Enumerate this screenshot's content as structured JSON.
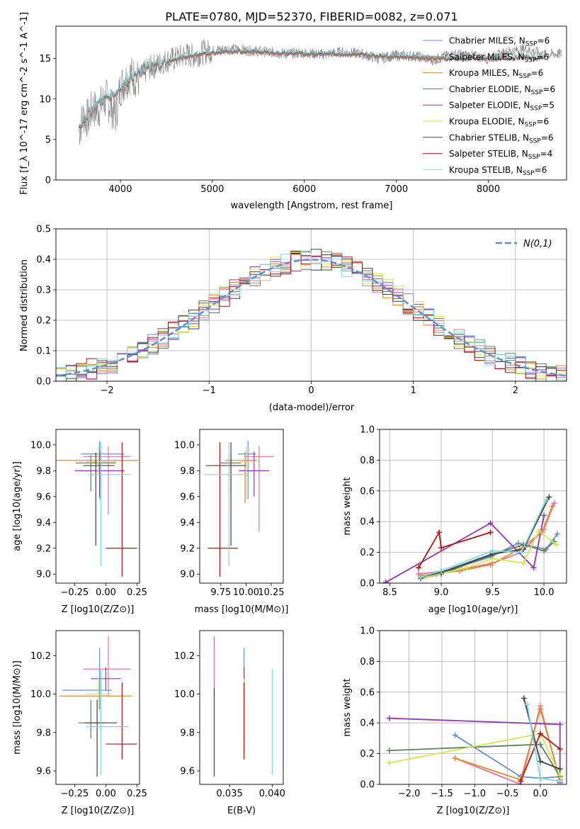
{
  "figure_title": "PLATE=0780, MJD=52370, FIBERID=0082, z=0.071",
  "series": [
    {
      "name": "Chabrier MILES",
      "nssp": "6",
      "color": "#6a8fd5"
    },
    {
      "name": "Salpeter MILES",
      "nssp": "6",
      "color": "#e8729a"
    },
    {
      "name": "Kroupa MILES",
      "nssp": "6",
      "color": "#e68a2e"
    },
    {
      "name": "Chabrier ELODIE",
      "nssp": "6",
      "color": "#5d7f63"
    },
    {
      "name": "Salpeter ELODIE",
      "nssp": "5",
      "color": "#9137b0"
    },
    {
      "name": "Kroupa ELODIE",
      "nssp": "6",
      "color": "#d5e650"
    },
    {
      "name": "Chabrier STELIB",
      "nssp": "6",
      "color": "#404040"
    },
    {
      "name": "Salpeter STELIB",
      "nssp": "4",
      "color": "#b01515"
    },
    {
      "name": "Kroupa STELIB",
      "nssp": "6",
      "color": "#7dd9de"
    }
  ],
  "chart_data": [
    {
      "id": "spectrum",
      "type": "line",
      "xlabel": "wavelength [Angstrom, rest frame]",
      "ylabel": "Flux [f_λ 10^-17 erg cm^-2 s^-1 A^-1]",
      "xlim": [
        3300,
        8850
      ],
      "ylim": [
        0,
        19
      ],
      "xticks": [
        4000,
        5000,
        6000,
        7000,
        8000
      ],
      "yticks": [
        0,
        5,
        10,
        15
      ],
      "grid": false,
      "legend_position": "top-right",
      "data_color": "#808080",
      "data_x": [
        3550,
        3600,
        3650,
        3700,
        3750,
        3800,
        3850,
        3900,
        3950,
        4000,
        4100,
        4200,
        4300,
        4400,
        4500,
        4600,
        4700,
        4800,
        4900,
        5000,
        5200,
        5400,
        5600,
        5800,
        6000,
        6200,
        6400,
        6600,
        6800,
        7000,
        7200,
        7400,
        7600,
        7800,
        8000,
        8200,
        8400,
        8600,
        8800
      ],
      "data_y": [
        6.0,
        8.0,
        7.5,
        9.0,
        8.5,
        9.5,
        10.0,
        9.0,
        8.0,
        11.5,
        13.0,
        12.5,
        13.8,
        14.2,
        14.8,
        15.0,
        15.5,
        15.3,
        15.8,
        16.0,
        16.2,
        16.0,
        15.8,
        15.6,
        15.7,
        15.5,
        15.8,
        15.6,
        15.0,
        15.4,
        15.3,
        14.8,
        15.5,
        15.4,
        15.0,
        15.8,
        16.2,
        15.5,
        15.6
      ],
      "model_x": [
        3550,
        3650,
        3750,
        3850,
        3950,
        4100,
        4300,
        4500,
        4700,
        4900,
        5100,
        5400,
        5700,
        6000,
        6300,
        6600,
        6900,
        7200,
        7500,
        7800,
        8100,
        8400,
        8600
      ],
      "model_y": [
        6.5,
        8.2,
        9.4,
        10.2,
        10.8,
        12.6,
        13.8,
        14.6,
        15.2,
        15.6,
        15.8,
        15.9,
        15.7,
        15.6,
        15.6,
        15.5,
        15.3,
        15.2,
        15.0,
        15.0,
        15.0,
        15.2,
        15.0
      ]
    },
    {
      "id": "residuals",
      "type": "histogram",
      "xlabel": "(data-model)/error",
      "ylabel": "Normed distribution",
      "xlim": [
        -2.5,
        2.5
      ],
      "ylim": [
        0,
        0.5
      ],
      "xticks": [
        -2,
        -1,
        0,
        1,
        2
      ],
      "yticks": [
        0.0,
        0.1,
        0.2,
        0.3,
        0.4,
        0.5
      ],
      "grid": true,
      "legend_position": "top-right",
      "legend_label": "N(0,1)",
      "reference_color": "#5b8fd6",
      "bins": [
        -2.5,
        2.5,
        50
      ]
    },
    {
      "id": "age-vs-Z",
      "type": "errorbar",
      "xlabel": "Z [log10(Z/Z⊙)]",
      "ylabel": "age [log10(age/yr)]",
      "xlim": [
        -0.4,
        0.27
      ],
      "ylim": [
        8.93,
        10.12
      ],
      "xticks": [
        -0.25,
        0.0,
        0.25
      ],
      "yticks": [
        9.0,
        9.2,
        9.4,
        9.6,
        9.8,
        10.0
      ],
      "points": [
        {
          "x": -0.05,
          "y": 9.93,
          "xe": [
            0.15,
            0.2
          ],
          "ye": [
            0.35,
            0.1
          ]
        },
        {
          "x": 0.02,
          "y": 9.91,
          "xe": [
            0.2,
            0.18
          ],
          "ye": [
            0.45,
            0.08
          ]
        },
        {
          "x": -0.04,
          "y": 9.88,
          "xe": [
            0.38,
            0.3
          ],
          "ye": [
            0.32,
            0.07
          ]
        },
        {
          "x": -0.12,
          "y": 9.86,
          "xe": [
            0.12,
            0.2
          ],
          "ye": [
            0.22,
            0.06
          ]
        },
        {
          "x": -0.05,
          "y": 9.8,
          "xe": [
            0.2,
            0.2
          ],
          "ye": [
            0.2,
            0.15
          ]
        },
        {
          "x": -0.06,
          "y": 9.87,
          "xe": [
            0.1,
            0.15
          ],
          "ye": [
            0.1,
            0.12
          ]
        },
        {
          "x": -0.08,
          "y": 9.84,
          "xe": [
            0.1,
            0.15
          ],
          "ye": [
            0.62,
            0.1
          ]
        },
        {
          "x": 0.13,
          "y": 9.2,
          "xe": [
            0.13,
            0.12
          ],
          "ye": [
            0.22,
            0.82
          ]
        },
        {
          "x": -0.04,
          "y": 9.77,
          "xe": [
            0.1,
            0.24
          ],
          "ye": [
            0.71,
            0.25
          ]
        }
      ]
    },
    {
      "id": "age-vs-mass",
      "type": "errorbar",
      "xlabel": "mass [log10(M/M⊙)]",
      "ylabel": "",
      "xlim": [
        9.54,
        10.37
      ],
      "ylim": [
        8.93,
        10.12
      ],
      "xticks": [
        9.75,
        10.0,
        10.25
      ],
      "yticks": [
        9.0,
        9.2,
        9.4,
        9.6,
        9.8,
        10.0
      ],
      "points": [
        {
          "x": 10.02,
          "y": 9.93,
          "xe": [
            0.1,
            0.08
          ],
          "ye": [
            0.35,
            0.1
          ]
        },
        {
          "x": 10.13,
          "y": 9.91,
          "xe": [
            0.15,
            0.15
          ],
          "ye": [
            0.58,
            0.08
          ]
        },
        {
          "x": 9.99,
          "y": 9.88,
          "xe": [
            0.2,
            0.12
          ],
          "ye": [
            0.33,
            0.07
          ]
        },
        {
          "x": 9.85,
          "y": 9.86,
          "xe": [
            0.1,
            0.1
          ],
          "ye": [
            0.22,
            0.06
          ]
        },
        {
          "x": 10.08,
          "y": 9.8,
          "xe": [
            0.15,
            0.15
          ],
          "ye": [
            0.2,
            0.15
          ]
        },
        {
          "x": 10.0,
          "y": 9.87,
          "xe": [
            0.05,
            0.1
          ],
          "ye": [
            0.3,
            0.12
          ]
        },
        {
          "x": 9.85,
          "y": 9.84,
          "xe": [
            0.25,
            0.15
          ],
          "ye": [
            0.62,
            0.18
          ]
        },
        {
          "x": 9.74,
          "y": 9.2,
          "xe": [
            0.12,
            0.18
          ],
          "ye": [
            0.22,
            0.82
          ]
        },
        {
          "x": 9.83,
          "y": 9.77,
          "xe": [
            0.25,
            0.2
          ],
          "ye": [
            0.71,
            0.25
          ]
        }
      ]
    },
    {
      "id": "weight-vs-age",
      "type": "line",
      "xlabel": "age [log10(age/yr)]",
      "ylabel": "mass weight",
      "xlim": [
        8.4,
        10.22
      ],
      "ylim": [
        0,
        1
      ],
      "xticks": [
        8.5,
        9.0,
        9.5,
        10.0
      ],
      "yticks": [
        0.0,
        0.2,
        0.4,
        0.6,
        0.8,
        1.0
      ],
      "grid": true,
      "series": [
        {
          "x": [
            8.8,
            8.95,
            9.48,
            9.75,
            10.02,
            10.13
          ],
          "y": [
            0.03,
            0.06,
            0.17,
            0.26,
            0.22,
            0.32
          ]
        },
        {
          "x": [
            8.78,
            9.2,
            9.5,
            9.78,
            10.0,
            10.1
          ],
          "y": [
            0.06,
            0.09,
            0.13,
            0.2,
            0.35,
            0.52
          ]
        },
        {
          "x": [
            8.8,
            9.18,
            9.48,
            9.76,
            9.98,
            10.08
          ],
          "y": [
            0.05,
            0.08,
            0.12,
            0.22,
            0.33,
            0.5
          ]
        },
        {
          "x": [
            8.8,
            9.0,
            9.48,
            9.8,
            10.0,
            10.1
          ],
          "y": [
            0.03,
            0.06,
            0.18,
            0.25,
            0.21,
            0.27
          ]
        },
        {
          "x": [
            8.46,
            9.48,
            9.9,
            10.0
          ],
          "y": [
            0.005,
            0.39,
            0.1,
            0.44
          ]
        },
        {
          "x": [
            8.85,
            9.25,
            9.5,
            9.8,
            9.95,
            10.12
          ],
          "y": [
            0.04,
            0.1,
            0.16,
            0.13,
            0.34,
            0.25
          ]
        },
        {
          "x": [
            8.8,
            9.0,
            9.5,
            9.8,
            10.05
          ],
          "y": [
            0.04,
            0.07,
            0.19,
            0.22,
            0.56
          ]
        },
        {
          "x": [
            8.78,
            8.98,
            9.0,
            9.48
          ],
          "y": [
            0.1,
            0.33,
            0.23,
            0.33
          ]
        },
        {
          "x": [
            8.8,
            9.0,
            9.5,
            9.78,
            10.02
          ],
          "y": [
            0.04,
            0.08,
            0.21,
            0.2,
            0.54
          ]
        }
      ]
    },
    {
      "id": "mass-vs-Z",
      "type": "errorbar",
      "xlabel": "Z [log10(Z/Z⊙)]",
      "ylabel": "mass [log10(M/M⊙)]",
      "xlim": [
        -0.4,
        0.27
      ],
      "ylim": [
        9.53,
        10.33
      ],
      "xticks": [
        -0.25,
        0.0,
        0.25
      ],
      "yticks": [
        9.6,
        9.8,
        10.0,
        10.2
      ],
      "points": [
        {
          "x": -0.05,
          "y": 10.02,
          "xe": [
            0.3,
            0.1
          ],
          "ye": [
            0.1,
            0.22
          ]
        },
        {
          "x": 0.02,
          "y": 10.13,
          "xe": [
            0.2,
            0.18
          ],
          "ye": [
            0.14,
            0.17
          ]
        },
        {
          "x": -0.04,
          "y": 9.99,
          "xe": [
            0.33,
            0.25
          ],
          "ye": [
            0.12,
            0.1
          ]
        },
        {
          "x": -0.12,
          "y": 9.85,
          "xe": [
            0.1,
            0.12
          ],
          "ye": [
            0.08,
            0.12
          ]
        },
        {
          "x": 0.0,
          "y": 10.08,
          "xe": [
            0.12,
            0.12
          ],
          "ye": [
            0.06,
            0.06
          ]
        },
        {
          "x": -0.06,
          "y": 10.0,
          "xe": [
            0.1,
            0.1
          ],
          "ye": [
            0.08,
            0.08
          ]
        },
        {
          "x": -0.07,
          "y": 9.85,
          "xe": [
            0.1,
            0.16
          ],
          "ye": [
            0.28,
            0.12
          ]
        },
        {
          "x": 0.13,
          "y": 9.74,
          "xe": [
            0.13,
            0.12
          ],
          "ye": [
            0.08,
            0.32
          ]
        },
        {
          "x": -0.04,
          "y": 9.83,
          "xe": [
            0.12,
            0.22
          ],
          "ye": [
            0.25,
            0.3
          ]
        }
      ]
    },
    {
      "id": "mass-vs-ebv",
      "type": "errorbar",
      "xlabel": "E(B-V)",
      "ylabel": "",
      "xlim": [
        0.0315,
        0.0413
      ],
      "ylim": [
        9.53,
        10.33
      ],
      "xticks": [
        0.035,
        0.04
      ],
      "yticks": [
        9.6,
        9.8,
        10.0,
        10.2
      ],
      "points": [
        {
          "x": 0.0367,
          "y": 10.02,
          "xe": [
            0,
            0
          ],
          "ye": [
            0.1,
            0.22
          ]
        },
        {
          "x": 0.0332,
          "y": 10.13,
          "xe": [
            0,
            0
          ],
          "ye": [
            0.14,
            0.17
          ]
        },
        {
          "x": 0.0367,
          "y": 9.99,
          "xe": [
            0,
            0
          ],
          "ye": [
            0.12,
            0.1
          ]
        },
        {
          "x": 0.0367,
          "y": 9.85,
          "xe": [
            0,
            0
          ],
          "ye": [
            0.08,
            0.12
          ]
        },
        {
          "x": 0.0367,
          "y": 10.08,
          "xe": [
            0,
            0
          ],
          "ye": [
            0.06,
            0.06
          ]
        },
        {
          "x": 0.0367,
          "y": 10.0,
          "xe": [
            0,
            0
          ],
          "ye": [
            0.08,
            0.08
          ]
        },
        {
          "x": 0.0332,
          "y": 9.85,
          "xe": [
            0,
            0
          ],
          "ye": [
            0.28,
            0.18
          ]
        },
        {
          "x": 0.0367,
          "y": 9.74,
          "xe": [
            0,
            0
          ],
          "ye": [
            0.08,
            0.32
          ]
        },
        {
          "x": 0.04,
          "y": 9.83,
          "xe": [
            0,
            0
          ],
          "ye": [
            0.25,
            0.3
          ]
        }
      ]
    },
    {
      "id": "weight-vs-Z",
      "type": "line",
      "xlabel": "Z [log10(Z/Z⊙)]",
      "ylabel": "mass weight",
      "xlim": [
        -2.45,
        0.4
      ],
      "ylim": [
        0,
        1
      ],
      "xticks": [
        -2.0,
        -1.5,
        -1.0,
        -0.5,
        0.0
      ],
      "yticks": [
        0.0,
        0.2,
        0.4,
        0.6,
        0.8,
        1.0
      ],
      "grid": true,
      "series": [
        {
          "x": [
            -1.3,
            -0.3,
            0.0,
            0.3
          ],
          "y": [
            0.32,
            0.05,
            0.04,
            0.05
          ]
        },
        {
          "x": [
            -1.3,
            -0.3,
            0.0,
            0.3
          ],
          "y": [
            0.17,
            0.0,
            0.51,
            0.02
          ]
        },
        {
          "x": [
            -1.3,
            -0.3,
            0.0,
            0.3
          ],
          "y": [
            0.17,
            0.03,
            0.49,
            0.03
          ]
        },
        {
          "x": [
            -2.3,
            0.0,
            0.3
          ],
          "y": [
            0.22,
            0.26,
            0.05
          ]
        },
        {
          "x": [
            -2.3,
            0.3,
            0.3
          ],
          "y": [
            0.43,
            0.39,
            0.01
          ]
        },
        {
          "x": [
            -2.3,
            0.0,
            0.3
          ],
          "y": [
            0.14,
            0.33,
            0.06
          ]
        },
        {
          "x": [
            -0.25,
            0.0,
            0.3
          ],
          "y": [
            0.56,
            0.15,
            0.1
          ]
        },
        {
          "x": [
            -0.3,
            0.0,
            0.3
          ],
          "y": [
            0.02,
            0.33,
            0.23
          ]
        },
        {
          "x": [
            -0.2,
            0.0,
            0.3
          ],
          "y": [
            0.52,
            0.04,
            0.02
          ]
        }
      ]
    }
  ]
}
